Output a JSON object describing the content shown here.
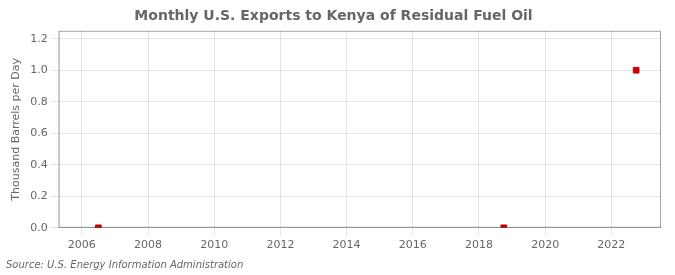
{
  "chart_data": {
    "type": "scatter",
    "title": "Monthly U.S. Exports to Kenya of Residual Fuel Oil",
    "ylabel": "Thousand Barrels per Day",
    "annotation": "Source: U.S. Energy Information Administration",
    "x": [
      2006.5,
      2018.75,
      2022.75
    ],
    "values": [
      0.0,
      0.0,
      1.0
    ],
    "color": "#cc0000",
    "marker": "square",
    "xlim": [
      2005.3,
      2023.5
    ],
    "ylim": [
      0.0,
      1.25
    ],
    "xticks": [
      2006,
      2008,
      2010,
      2012,
      2014,
      2016,
      2018,
      2020,
      2022
    ],
    "yticks": [
      {
        "value": 0.0,
        "label": "0.0"
      },
      0.2,
      0.4,
      0.6,
      0.8,
      {
        "value": 1.0,
        "label": "1.0"
      },
      1.2
    ],
    "grid": true
  }
}
